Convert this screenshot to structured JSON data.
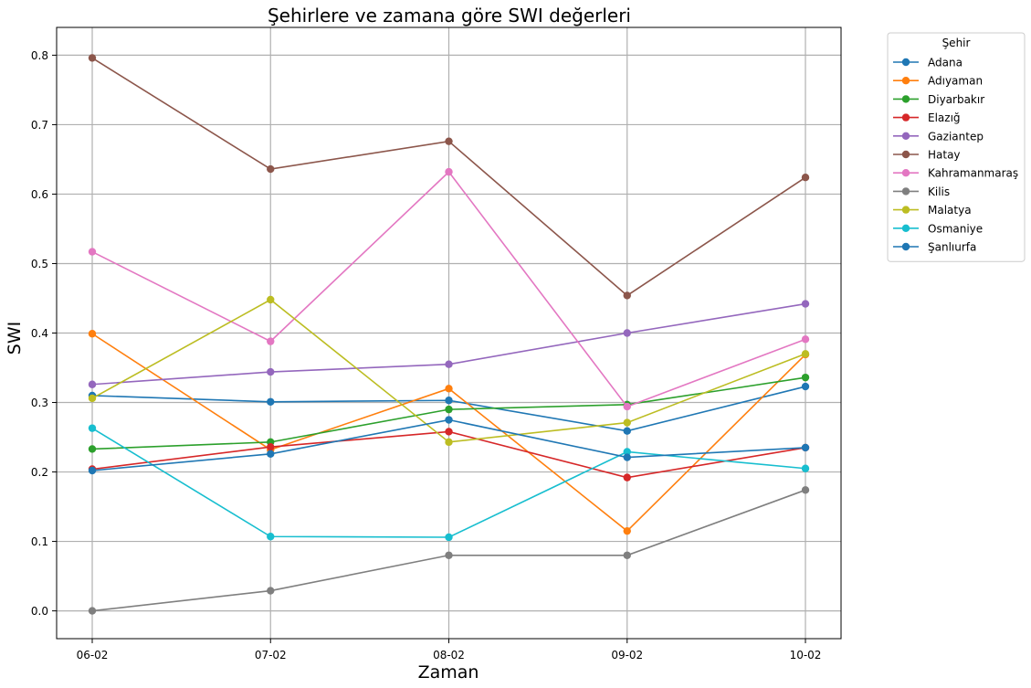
{
  "chart_data": {
    "type": "line",
    "title": "Şehirlere ve zamana göre SWI değerleri",
    "xlabel": "Zaman",
    "ylabel": "SWI",
    "categories": [
      "06-02",
      "07-02",
      "08-02",
      "09-02",
      "10-02"
    ],
    "ylim": [
      -0.04,
      0.84
    ],
    "yticks": [
      0.0,
      0.1,
      0.2,
      0.3,
      0.4,
      0.5,
      0.6,
      0.7,
      0.8
    ],
    "ytick_labels": [
      "0.0",
      "0.1",
      "0.2",
      "0.3",
      "0.4",
      "0.5",
      "0.6",
      "0.7",
      "0.8"
    ],
    "grid": true,
    "legend_title": "Şehir",
    "legend_position": "outside-top-right",
    "series": [
      {
        "name": "Adana",
        "color": "#1f77b4",
        "values": [
          0.31,
          0.301,
          0.303,
          0.259,
          0.323
        ]
      },
      {
        "name": "Adıyaman",
        "color": "#ff7f0e",
        "values": [
          0.399,
          0.232,
          0.32,
          0.115,
          0.369
        ]
      },
      {
        "name": "Diyarbakır",
        "color": "#2ca02c",
        "values": [
          0.233,
          0.243,
          0.29,
          0.297,
          0.336
        ]
      },
      {
        "name": "Elazığ",
        "color": "#d62728",
        "values": [
          0.204,
          0.236,
          0.258,
          0.192,
          0.235
        ]
      },
      {
        "name": "Gaziantep",
        "color": "#9467bd",
        "values": [
          0.326,
          0.344,
          0.355,
          0.4,
          0.442
        ]
      },
      {
        "name": "Hatay",
        "color": "#8c564b",
        "values": [
          0.796,
          0.636,
          0.676,
          0.454,
          0.624
        ]
      },
      {
        "name": "Kahramanmaraş",
        "color": "#e377c2",
        "values": [
          0.517,
          0.388,
          0.632,
          0.294,
          0.391
        ]
      },
      {
        "name": "Kilis",
        "color": "#7f7f7f",
        "values": [
          0.0,
          0.029,
          0.08,
          0.08,
          0.174
        ]
      },
      {
        "name": "Malatya",
        "color": "#bcbd22",
        "values": [
          0.306,
          0.448,
          0.243,
          0.271,
          0.37
        ]
      },
      {
        "name": "Osmaniye",
        "color": "#17becf",
        "values": [
          0.263,
          0.107,
          0.106,
          0.229,
          0.205
        ]
      },
      {
        "name": "Şanlıurfa",
        "color": "#1f77b4",
        "values": [
          0.202,
          0.226,
          0.275,
          0.221,
          0.235
        ]
      }
    ]
  }
}
